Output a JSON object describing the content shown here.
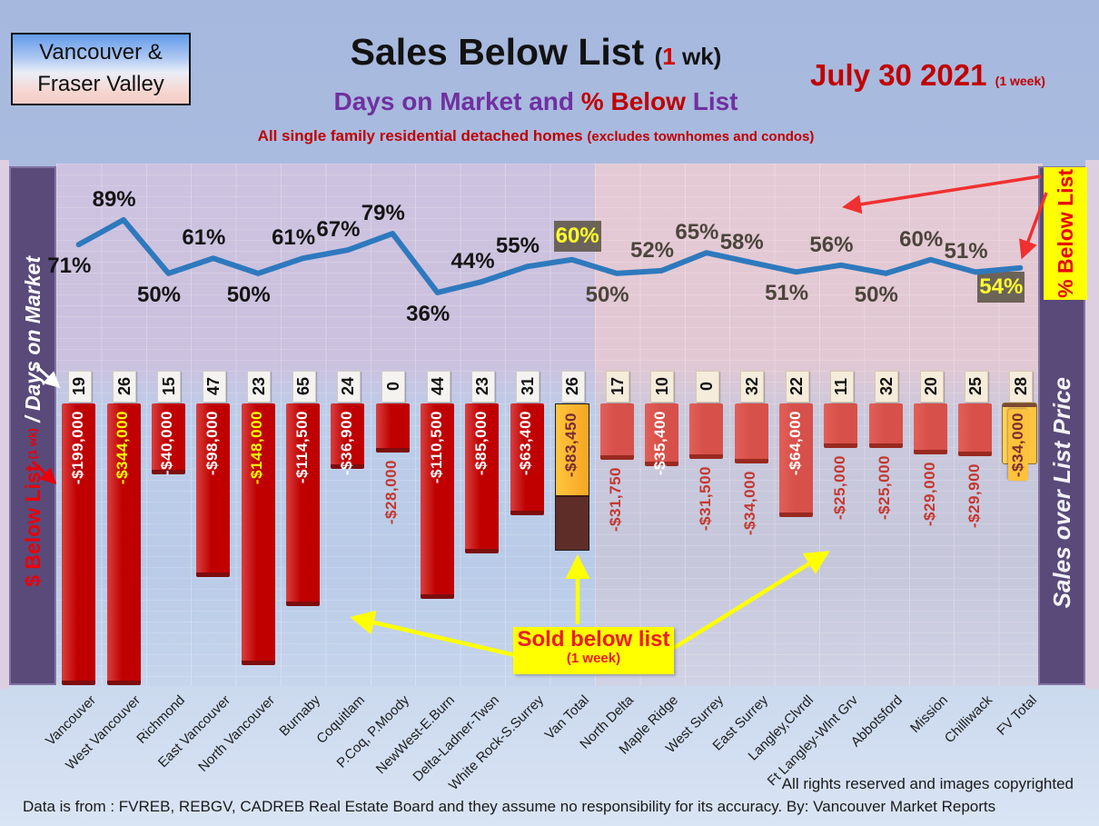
{
  "header": {
    "region_line1": "Vancouver &",
    "region_line2": "Fraser Valley",
    "title_main": "Sales Below List ",
    "title_paren_open": "(",
    "title_one": "1",
    "title_wk": " wk)",
    "date_text": "July 30  2021 ",
    "date_suffix": "(1 week)",
    "subtitle_part1": "Days on Market and ",
    "subtitle_part2": "% Below ",
    "subtitle_part3": "List",
    "line3_main": "All single family residential detached homes ",
    "line3_paren": "(excludes townhomes and condos)"
  },
  "left_axis": {
    "red_label": "$ Below List ",
    "red_small": "(1 wk)",
    "slash": " / ",
    "white_label": "Days on Market"
  },
  "right_axis": {
    "yellow_label": "% Below List",
    "purple_label": "Sales over List Price"
  },
  "annotations": {
    "sold_below_line1": "Sold below list",
    "sold_below_line2": "(1 week)"
  },
  "footer": {
    "rights": "All rights reserved and  images copyrighted",
    "source": "Data is from : FVREB, REBGV, CADREB Real Estate Board and they assume no responsibility for its accuracy. By: Vancouver Market Reports"
  },
  "colors": {
    "accent_red": "#c00000",
    "purple": "#7030a0",
    "line_blue": "#2e79bd",
    "van_bar": "#c00000",
    "fv_bar": "#d7504a",
    "gold": "#f5a623",
    "fv_gold": "#ffc23c",
    "brown_segment": "#5f2d28",
    "sidebar_purple": "#594a79",
    "annotation_yellow": "#ffff00",
    "pct_box_bg": "#655e51",
    "pct_box_text": "#ffff2e"
  },
  "chart_data": {
    "type": "bar",
    "title": "Sales Below List (1 wk) — Days on Market and % Below List",
    "categories": [
      "Vancouver",
      "West Vancouver",
      "Richmond",
      "East Vancouver",
      "North Vancouver",
      "Burnaby",
      "Coquitlam",
      "P.Coq, P.Moody",
      "NewWest-E.Burn",
      "Delta-Ladner-Twsn",
      "White Rock-S.Surrey",
      "Van Total",
      "North Delta",
      "Maple Ridge",
      "West Surrey",
      "East Surrey",
      "Langley,Clvrdl",
      "Ft Langley-Wlnt Grv",
      "Abbotsford",
      "Mission",
      "Chilliwack",
      "FV Total"
    ],
    "series": [
      {
        "name": "% Below List",
        "type": "line",
        "values": [
          71,
          89,
          50,
          61,
          50,
          61,
          67,
          79,
          36,
          44,
          55,
          60,
          50,
          52,
          65,
          58,
          51,
          56,
          50,
          60,
          51,
          54
        ]
      },
      {
        "name": "Days on Market",
        "type": "badge",
        "values": [
          19,
          26,
          15,
          47,
          23,
          65,
          24,
          0,
          44,
          23,
          31,
          26,
          17,
          10,
          0,
          32,
          22,
          11,
          32,
          20,
          25,
          28
        ]
      },
      {
        "name": "$ Below List (1 wk)",
        "type": "bar",
        "values": [
          -199000,
          -344000,
          -40000,
          -98000,
          -148000,
          -114500,
          -36900,
          -28000,
          -110500,
          -85000,
          -63400,
          -83450,
          -31750,
          -35400,
          -31500,
          -34000,
          -64000,
          -25000,
          -25000,
          -29000,
          -29900,
          -34000
        ],
        "labels": [
          "-$199,000",
          "-$344,000",
          "-$40,000",
          "-$98,000",
          "-$148,000",
          "-$114,500",
          "-$36,900",
          "-$28,000",
          "-$110,500",
          "-$85,000",
          "-$63,400",
          "-$83,450",
          "-$31,750",
          "-$35,400",
          "-$31,500",
          "-$34,000",
          "-$64,000",
          "-$25,000",
          "-$25,000",
          "-$29,000",
          "-$29,900",
          "-$34,000"
        ]
      }
    ],
    "groups": [
      "van",
      "van",
      "van",
      "van",
      "van",
      "van",
      "van",
      "van",
      "van",
      "van",
      "van",
      "van-total",
      "fv",
      "fv",
      "fv",
      "fv",
      "fv",
      "fv",
      "fv",
      "fv",
      "fv",
      "fv-total"
    ],
    "bar_label_styles": [
      "inside-white",
      "inside-yellow",
      "inside-white",
      "inside-white",
      "inside-yellow",
      "inside-white",
      "inside-white",
      "below-red",
      "inside-white",
      "inside-white",
      "inside-white",
      "total-van",
      "below-red",
      "inside-white",
      "below-red",
      "below-red",
      "inside-white",
      "below-red",
      "below-red",
      "below-red",
      "below-red",
      "total-fv"
    ],
    "pct_label_positions": [
      "below",
      "above",
      "below",
      "above",
      "below",
      "above",
      "above",
      "above",
      "below",
      "above",
      "above",
      "boxed-above",
      "below",
      "above",
      "above",
      "above",
      "below",
      "above",
      "below",
      "above",
      "above",
      "boxed-below"
    ],
    "ylim_bar": [
      -360000,
      0
    ],
    "grid": true,
    "legend_position": "none"
  }
}
